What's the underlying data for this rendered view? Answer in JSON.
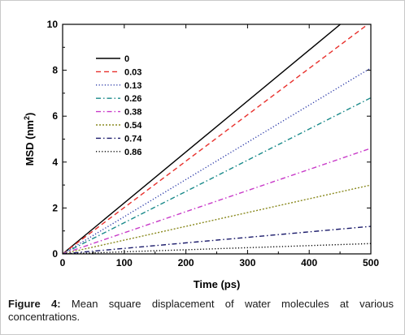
{
  "chart_data": {
    "type": "line",
    "xlabel": "Time (ps)",
    "ylabel": "MSD",
    "ylabel_unit": "(nm",
    "ylabel_sup": "2",
    "ylabel_close": ")",
    "xlim": [
      0,
      500
    ],
    "ylim": [
      0,
      10
    ],
    "xticks": [
      0,
      100,
      200,
      300,
      400,
      500
    ],
    "yticks": [
      0,
      2,
      4,
      6,
      8,
      10
    ],
    "grid": false,
    "legend_placement": "top-left",
    "series": [
      {
        "name": "0",
        "color": "#000000",
        "dash": "solid",
        "x": [
          0,
          500
        ],
        "y": [
          0,
          11.1
        ]
      },
      {
        "name": "0.03",
        "color": "#e8302c",
        "dash": "dash",
        "x": [
          0,
          500
        ],
        "y": [
          0,
          10.1
        ]
      },
      {
        "name": "0.13",
        "color": "#2b3aa8",
        "dash": "dot",
        "x": [
          0,
          500
        ],
        "y": [
          0,
          8.1
        ]
      },
      {
        "name": "0.26",
        "color": "#1a8a8a",
        "dash": "dashdot",
        "x": [
          0,
          500
        ],
        "y": [
          0,
          6.8
        ]
      },
      {
        "name": "0.38",
        "color": "#c83ac8",
        "dash": "dashdot",
        "x": [
          0,
          500
        ],
        "y": [
          0,
          4.6
        ]
      },
      {
        "name": "0.54",
        "color": "#8a8a20",
        "dash": "shortdot",
        "x": [
          0,
          500
        ],
        "y": [
          0,
          3.0
        ]
      },
      {
        "name": "0.74",
        "color": "#1a1a6a",
        "dash": "dashdot",
        "x": [
          0,
          500
        ],
        "y": [
          0,
          1.2
        ]
      },
      {
        "name": "0.86",
        "color": "#000000",
        "dash": "dot",
        "x": [
          0,
          500
        ],
        "y": [
          0,
          0.45
        ]
      }
    ]
  },
  "caption": {
    "prefix": "Figure 4:",
    "text": " Mean square displacement of water molecules at various concentrations."
  }
}
